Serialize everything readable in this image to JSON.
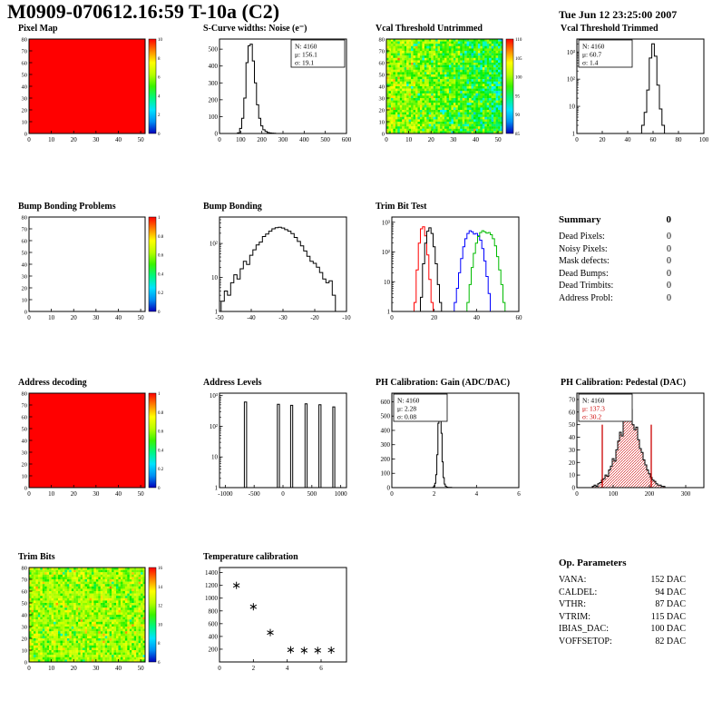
{
  "header": {
    "title": "M0909-070612.16:59 T-10a (C2)",
    "date": "Tue Jun 12 23:25:00 2007"
  },
  "summary": {
    "title": "Summary",
    "value": "0",
    "rows": [
      {
        "label": "Dead Pixels:",
        "value": "0"
      },
      {
        "label": "Noisy Pixels:",
        "value": "0"
      },
      {
        "label": "Mask defects:",
        "value": "0"
      },
      {
        "label": "Dead Bumps:",
        "value": "0"
      },
      {
        "label": "Dead Trimbits:",
        "value": "0"
      },
      {
        "label": "Address Probl:",
        "value": "0"
      }
    ]
  },
  "op_parameters": {
    "title": "Op. Parameters",
    "rows": [
      {
        "label": "VANA:",
        "value": "152 DAC"
      },
      {
        "label": "CALDEL:",
        "value": "94 DAC"
      },
      {
        "label": "VTHR:",
        "value": "87 DAC"
      },
      {
        "label": "VTRIM:",
        "value": "115 DAC"
      },
      {
        "label": "IBIAS_DAC:",
        "value": "100 DAC"
      },
      {
        "label": "VOFFSETOP:",
        "value": "82 DAC"
      }
    ]
  },
  "chart_data": [
    {
      "id": "pixel-map",
      "title": "Pixel Map",
      "type": "heatmap",
      "mode": "solid",
      "color": "#ff0000",
      "xlim": [
        0,
        52
      ],
      "xticks": [
        0,
        10,
        20,
        30,
        40,
        50
      ],
      "ylim": [
        0,
        80
      ],
      "yticks": [
        0,
        10,
        20,
        30,
        40,
        50,
        60,
        70,
        80
      ],
      "colorbar": {
        "labels": [
          "10",
          "8",
          "6",
          "4",
          "2",
          "0"
        ]
      }
    },
    {
      "id": "scurve-noise",
      "title": "S-Curve widths: Noise (e⁻)",
      "type": "histogram",
      "logy": false,
      "xlim": [
        0,
        600
      ],
      "xticks": [
        0,
        100,
        200,
        300,
        400,
        500,
        600
      ],
      "ylim": [
        0,
        560
      ],
      "yticks": [
        0,
        100,
        200,
        300,
        400,
        500
      ],
      "binw": 10,
      "stats_pos": "right",
      "points": [
        [
          90,
          4
        ],
        [
          100,
          30
        ],
        [
          110,
          90
        ],
        [
          120,
          210
        ],
        [
          130,
          420
        ],
        [
          140,
          520
        ],
        [
          150,
          530
        ],
        [
          160,
          430
        ],
        [
          170,
          300
        ],
        [
          180,
          170
        ],
        [
          190,
          90
        ],
        [
          200,
          45
        ],
        [
          210,
          22
        ],
        [
          220,
          12
        ],
        [
          230,
          6
        ],
        [
          240,
          3
        ],
        [
          250,
          2
        ],
        [
          260,
          1
        ]
      ],
      "stats": {
        "lines": [
          {
            "text": "N: 4160"
          },
          {
            "text": "μ: 156.1"
          },
          {
            "text": "σ: 19.1"
          }
        ]
      }
    },
    {
      "id": "vcal-untrimmed",
      "title": "Vcal Threshold Untrimmed",
      "type": "heatmap",
      "mode": "noise",
      "noise": {
        "mean": 0.52,
        "sigma": 0.1,
        "drift": -0.18,
        "nx": 52,
        "ny": 40
      },
      "xlim": [
        0,
        52
      ],
      "xticks": [
        0,
        10,
        20,
        30,
        40,
        50
      ],
      "ylim": [
        0,
        80
      ],
      "yticks": [
        0,
        10,
        20,
        30,
        40,
        50,
        60,
        70,
        80
      ],
      "colorbar": {
        "labels": [
          "110",
          "105",
          "100",
          "95",
          "90",
          "85"
        ]
      }
    },
    {
      "id": "vcal-trimmed",
      "title": "Vcal Threshold Trimmed",
      "type": "histogram",
      "logy": true,
      "xlim": [
        0,
        100
      ],
      "xticks": [
        0,
        20,
        40,
        60,
        80,
        100
      ],
      "ylim": [
        1,
        3000
      ],
      "binw": 2,
      "stats_pos": "left",
      "points": [
        [
          50,
          1
        ],
        [
          52,
          2
        ],
        [
          54,
          6
        ],
        [
          56,
          40
        ],
        [
          58,
          600
        ],
        [
          60,
          2000
        ],
        [
          62,
          700
        ],
        [
          64,
          60
        ],
        [
          66,
          8
        ],
        [
          68,
          2
        ]
      ],
      "stats": {
        "lines": [
          {
            "text": "N: 4160"
          },
          {
            "text": "μ: 60.7"
          },
          {
            "text": "σ: 1.4"
          }
        ]
      }
    },
    {
      "id": "bump-bonding-problems",
      "title": "Bump Bonding Problems",
      "type": "heatmap",
      "mode": "empty",
      "xlim": [
        0,
        52
      ],
      "xticks": [
        0,
        10,
        20,
        30,
        40,
        50
      ],
      "ylim": [
        0,
        80
      ],
      "yticks": [
        0,
        10,
        20,
        30,
        40,
        50,
        60,
        70,
        80
      ],
      "colorbar": {
        "labels": [
          "1",
          "0.8",
          "0.6",
          "0.4",
          "0.2",
          "0"
        ]
      }
    },
    {
      "id": "bump-bonding",
      "title": "Bump Bonding",
      "type": "histogram",
      "logy": true,
      "xlim": [
        -50,
        -10
      ],
      "xticks": [
        -50,
        -40,
        -30,
        -20,
        -10
      ],
      "ylim": [
        1,
        600
      ],
      "binw": 1,
      "points": [
        [
          -49,
          2
        ],
        [
          -48,
          4
        ],
        [
          -47,
          3
        ],
        [
          -46,
          7
        ],
        [
          -45,
          12
        ],
        [
          -44,
          9
        ],
        [
          -43,
          18
        ],
        [
          -42,
          30
        ],
        [
          -41,
          24
        ],
        [
          -40,
          45
        ],
        [
          -39,
          65
        ],
        [
          -38,
          90
        ],
        [
          -37,
          110
        ],
        [
          -36,
          160
        ],
        [
          -35,
          190
        ],
        [
          -34,
          230
        ],
        [
          -33,
          270
        ],
        [
          -32,
          290
        ],
        [
          -31,
          300
        ],
        [
          -30,
          285
        ],
        [
          -29,
          255
        ],
        [
          -28,
          230
        ],
        [
          -27,
          195
        ],
        [
          -26,
          150
        ],
        [
          -25,
          115
        ],
        [
          -24,
          85
        ],
        [
          -23,
          60
        ],
        [
          -22,
          42
        ],
        [
          -21,
          30
        ],
        [
          -20,
          26
        ],
        [
          -19,
          20
        ],
        [
          -18,
          14
        ],
        [
          -17,
          9
        ],
        [
          -16,
          7
        ],
        [
          -15,
          8
        ],
        [
          -14,
          3
        ],
        [
          -13,
          1
        ]
      ]
    },
    {
      "id": "trim-bit-test",
      "title": "Trim Bit Test",
      "type": "multi-histogram",
      "logy": true,
      "xlim": [
        0,
        60
      ],
      "xticks": [
        0,
        20,
        40,
        60
      ],
      "ylim": [
        1,
        1500
      ],
      "binw": 1,
      "series": [
        {
          "name": "red-distribution",
          "color": "#ff0000",
          "points": [
            [
              11,
              2
            ],
            [
              12,
              25
            ],
            [
              13,
              200
            ],
            [
              14,
              600
            ],
            [
              15,
              700
            ],
            [
              16,
              350
            ],
            [
              17,
              80
            ],
            [
              18,
              12
            ],
            [
              19,
              2
            ]
          ]
        },
        {
          "name": "black-distribution",
          "color": "#000000",
          "points": [
            [
              14,
              3
            ],
            [
              15,
              40
            ],
            [
              16,
              200
            ],
            [
              17,
              500
            ],
            [
              18,
              650
            ],
            [
              19,
              420
            ],
            [
              20,
              150
            ],
            [
              21,
              40
            ],
            [
              22,
              8
            ],
            [
              23,
              2
            ]
          ]
        },
        {
          "name": "blue-distribution",
          "color": "#0000ff",
          "points": [
            [
              30,
              2
            ],
            [
              31,
              6
            ],
            [
              32,
              20
            ],
            [
              33,
              60
            ],
            [
              34,
              150
            ],
            [
              35,
              280
            ],
            [
              36,
              420
            ],
            [
              37,
              520
            ],
            [
              38,
              480
            ],
            [
              39,
              400
            ],
            [
              40,
              420
            ],
            [
              41,
              350
            ],
            [
              42,
              250
            ],
            [
              43,
              130
            ],
            [
              44,
              50
            ],
            [
              45,
              15
            ],
            [
              46,
              4
            ],
            [
              47,
              1
            ]
          ]
        },
        {
          "name": "green-distribution",
          "color": "#00bb00",
          "points": [
            [
              36,
              2
            ],
            [
              37,
              8
            ],
            [
              38,
              30
            ],
            [
              39,
              90
            ],
            [
              40,
              200
            ],
            [
              41,
              330
            ],
            [
              42,
              450
            ],
            [
              43,
              520
            ],
            [
              44,
              480
            ],
            [
              45,
              430
            ],
            [
              46,
              450
            ],
            [
              47,
              380
            ],
            [
              48,
              280
            ],
            [
              49,
              160
            ],
            [
              50,
              70
            ],
            [
              51,
              25
            ],
            [
              52,
              8
            ],
            [
              53,
              2
            ]
          ]
        }
      ]
    },
    {
      "id": "address-decoding",
      "title": "Address decoding",
      "type": "heatmap",
      "mode": "solid",
      "color": "#ff0000",
      "xlim": [
        0,
        52
      ],
      "xticks": [
        0,
        10,
        20,
        30,
        40,
        50
      ],
      "ylim": [
        0,
        80
      ],
      "yticks": [
        0,
        10,
        20,
        30,
        40,
        50,
        60,
        70,
        80
      ],
      "colorbar": {
        "labels": [
          "1",
          "0.8",
          "0.6",
          "0.4",
          "0.2",
          "0"
        ]
      }
    },
    {
      "id": "address-levels",
      "title": "Address Levels",
      "type": "spikes",
      "logy": true,
      "xlim": [
        -1100,
        1100
      ],
      "xticks": [
        -1000,
        -500,
        0,
        500,
        1000
      ],
      "ylim": [
        1,
        1200
      ],
      "spikes": [
        [
          -650,
          620,
          40
        ],
        [
          -80,
          520,
          36
        ],
        [
          150,
          480,
          36
        ],
        [
          400,
          540,
          36
        ],
        [
          640,
          500,
          36
        ],
        [
          880,
          430,
          36
        ]
      ]
    },
    {
      "id": "ph-gain",
      "title": "PH Calibration: Gain (ADC/DAC)",
      "type": "histogram",
      "logy": false,
      "xlim": [
        0,
        6
      ],
      "xticks": [
        0,
        2,
        4,
        6
      ],
      "ylim": [
        0,
        660
      ],
      "yticks": [
        0,
        100,
        200,
        300,
        400,
        500,
        600
      ],
      "binw": 0.05,
      "stats_pos": "left",
      "points": [
        [
          1.95,
          2
        ],
        [
          2.0,
          8
        ],
        [
          2.05,
          30
        ],
        [
          2.1,
          90
        ],
        [
          2.15,
          230
        ],
        [
          2.2,
          450
        ],
        [
          2.25,
          600
        ],
        [
          2.3,
          570
        ],
        [
          2.35,
          380
        ],
        [
          2.4,
          180
        ],
        [
          2.45,
          70
        ],
        [
          2.5,
          25
        ],
        [
          2.55,
          10
        ],
        [
          2.6,
          4
        ],
        [
          2.7,
          2
        ],
        [
          2.8,
          1
        ]
      ],
      "stats": {
        "lines": [
          {
            "text": "N: 4160"
          },
          {
            "text": "μ: 2.28"
          },
          {
            "text": "σ: 0.08"
          }
        ]
      }
    },
    {
      "id": "ph-pedestal",
      "title": "PH Calibration: Pedestal (DAC)",
      "type": "histogram",
      "logy": false,
      "xlim": [
        0,
        350
      ],
      "xticks": [
        0,
        100,
        200,
        300
      ],
      "ylim": [
        0,
        75
      ],
      "yticks": [
        0,
        10,
        20,
        30,
        40,
        50,
        60,
        70
      ],
      "binw": 5,
      "stats_pos": "left",
      "hatch": true,
      "hatch_color": "#cc0000",
      "vlines": [
        {
          "x": 70,
          "y": 50,
          "color": "#cc0000"
        },
        {
          "x": 205,
          "y": 50,
          "color": "#cc0000"
        }
      ],
      "points": [
        [
          45,
          1
        ],
        [
          50,
          2
        ],
        [
          55,
          1
        ],
        [
          60,
          3
        ],
        [
          65,
          4
        ],
        [
          70,
          6
        ],
        [
          75,
          7
        ],
        [
          80,
          10
        ],
        [
          85,
          9
        ],
        [
          90,
          14
        ],
        [
          95,
          17
        ],
        [
          100,
          23
        ],
        [
          105,
          21
        ],
        [
          110,
          30
        ],
        [
          115,
          37
        ],
        [
          120,
          44
        ],
        [
          125,
          41
        ],
        [
          130,
          55
        ],
        [
          135,
          65
        ],
        [
          140,
          61
        ],
        [
          145,
          57
        ],
        [
          150,
          62
        ],
        [
          155,
          50
        ],
        [
          160,
          46
        ],
        [
          165,
          48
        ],
        [
          170,
          38
        ],
        [
          175,
          31
        ],
        [
          180,
          28
        ],
        [
          185,
          22
        ],
        [
          190,
          18
        ],
        [
          195,
          14
        ],
        [
          200,
          11
        ],
        [
          205,
          8
        ],
        [
          210,
          6
        ],
        [
          215,
          5
        ],
        [
          220,
          3
        ],
        [
          225,
          2
        ],
        [
          230,
          2
        ],
        [
          235,
          1
        ],
        [
          240,
          1
        ]
      ],
      "stats": {
        "lines": [
          {
            "text": "N: 4160",
            "color": "#000000"
          },
          {
            "text": "μ: 137.3",
            "color": "#cc0000"
          },
          {
            "text": "σ: 30.2",
            "color": "#cc0000"
          }
        ]
      }
    },
    {
      "id": "trim-bits",
      "title": "Trim Bits",
      "type": "heatmap",
      "mode": "noise",
      "noise": {
        "mean": 0.6,
        "sigma": 0.09,
        "drift": 0,
        "nx": 52,
        "ny": 40
      },
      "xlim": [
        0,
        52
      ],
      "xticks": [
        0,
        10,
        20,
        30,
        40,
        50
      ],
      "ylim": [
        0,
        80
      ],
      "yticks": [
        0,
        10,
        20,
        30,
        40,
        50,
        60,
        70,
        80
      ],
      "colorbar": {
        "labels": [
          "16",
          "14",
          "12",
          "10",
          "8",
          "6"
        ]
      }
    },
    {
      "id": "temperature-calibration",
      "title": "Temperature calibration",
      "type": "scatter",
      "xlim": [
        0,
        7.5
      ],
      "xticks": [
        0,
        2,
        4,
        6
      ],
      "ylim": [
        0,
        1480
      ],
      "yticks": [
        200,
        400,
        600,
        800,
        1000,
        1200,
        1400
      ],
      "marker": "asterisk",
      "points": [
        [
          1,
          1200
        ],
        [
          2,
          865
        ],
        [
          3,
          460
        ],
        [
          4.2,
          190
        ],
        [
          5,
          180
        ],
        [
          5.8,
          180
        ],
        [
          6.6,
          185
        ]
      ]
    }
  ]
}
